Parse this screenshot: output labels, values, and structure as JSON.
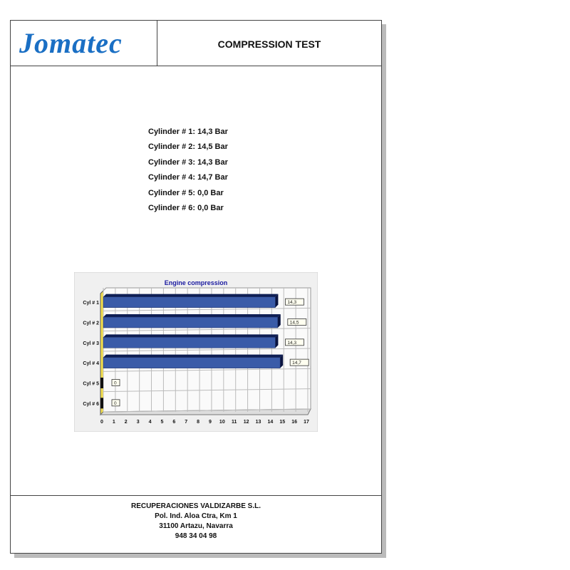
{
  "header": {
    "logo": "Jomatec",
    "title": "COMPRESSION TEST"
  },
  "results": [
    "Cylinder # 1: 14,3 Bar",
    "Cylinder # 2: 14,5 Bar",
    "Cylinder # 3: 14,3 Bar",
    "Cylinder # 4: 14,7 Bar",
    "Cylinder # 5:  0,0 Bar",
    "Cylinder # 6:  0,0 Bar"
  ],
  "chart_data": {
    "type": "bar",
    "orientation": "horizontal",
    "title": "Engine compression",
    "categories": [
      "Cyl # 1",
      "Cyl # 2",
      "Cyl # 3",
      "Cyl # 4",
      "Cyl # 5",
      "Cyl # 6"
    ],
    "values": [
      14.3,
      14.5,
      14.3,
      14.7,
      0,
      0
    ],
    "data_labels": [
      "14,3",
      "14,5",
      "14,3",
      "14,7",
      "0",
      "0"
    ],
    "xlim": [
      0,
      17
    ],
    "xticks": [
      0,
      1,
      2,
      3,
      4,
      5,
      6,
      7,
      8,
      9,
      10,
      11,
      12,
      13,
      14,
      15,
      16,
      17
    ],
    "grid": true,
    "bar_color": "#3a5ba8",
    "title_color": "#1a1aa0"
  },
  "footer": {
    "company": "RECUPERACIONES VALDIZARBE S.L.",
    "address1": "Pol. Ind. Aloa Ctra, Km 1",
    "address2": "31100 Artazu, Navarra",
    "phone": "948 34 04 98"
  }
}
